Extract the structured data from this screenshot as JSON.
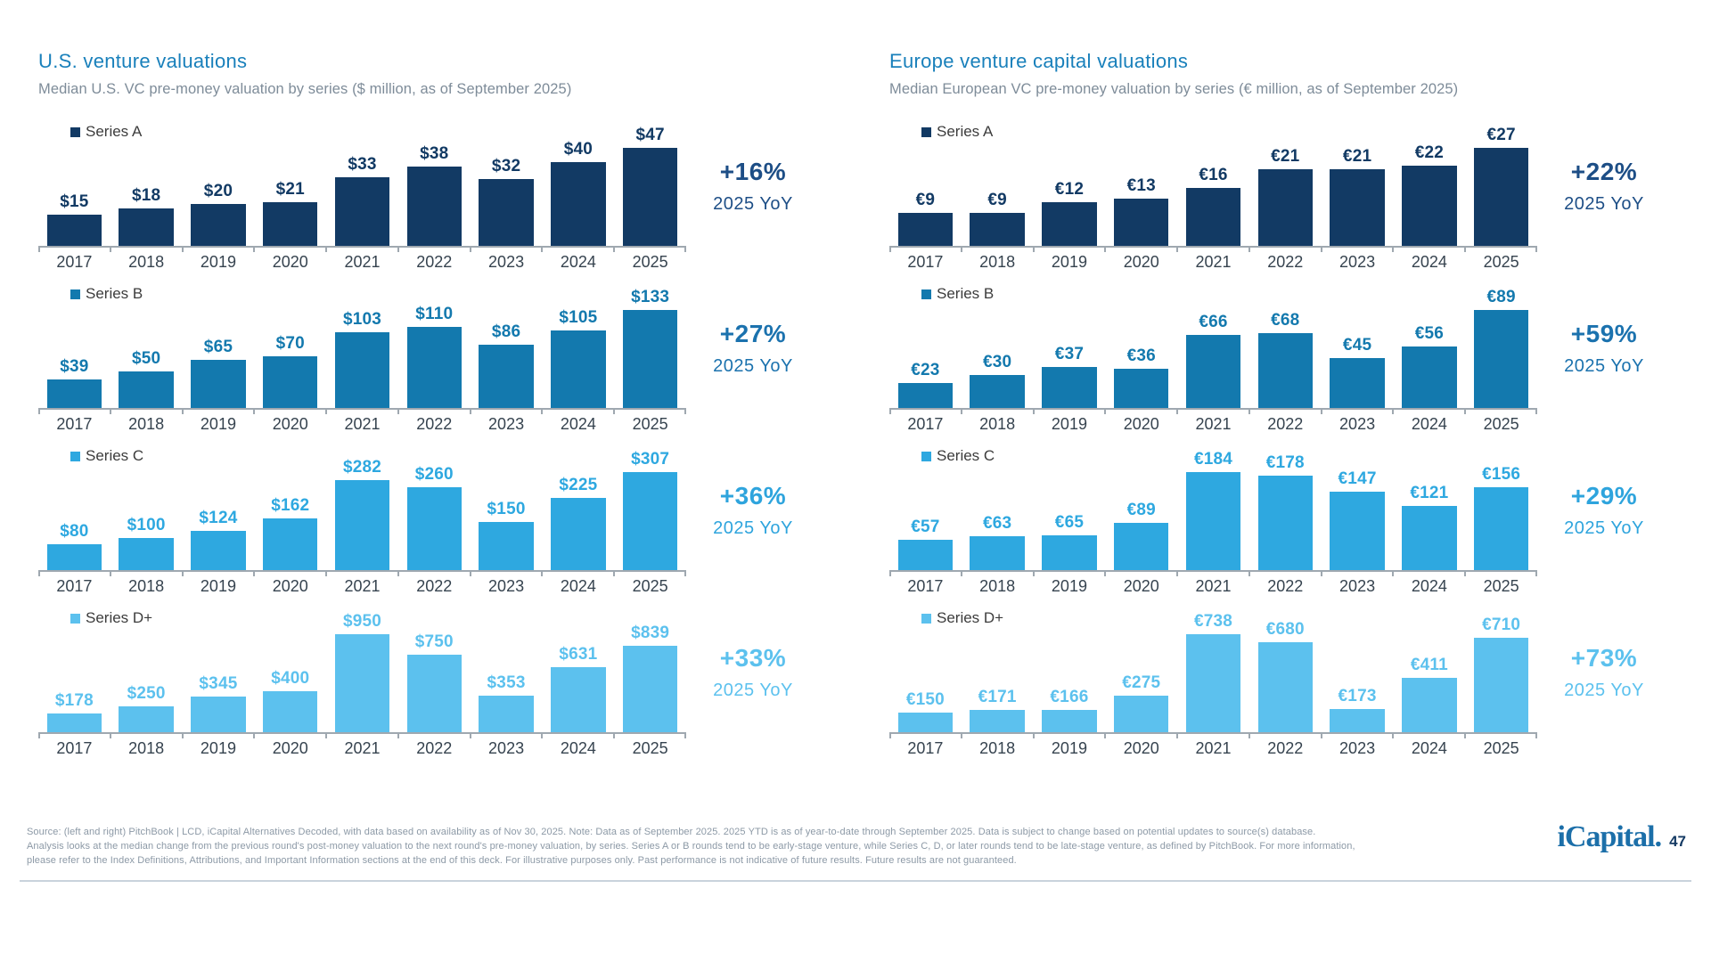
{
  "sections": {
    "left": {
      "title": "U.S. venture valuations",
      "subtitle": "Median U.S. VC pre-money valuation by series ($ million, as of September 2025)"
    },
    "right": {
      "title": "Europe venture capital valuations",
      "subtitle": "Median European VC pre-money valuation by series (€ million, as of September 2025)"
    }
  },
  "chart_data": [
    {
      "type": "bar",
      "side": "left",
      "series": "Series A",
      "currency": "$",
      "categories": [
        "2017",
        "2018",
        "2019",
        "2020",
        "2021",
        "2022",
        "2023",
        "2024",
        "2025"
      ],
      "values": [
        15,
        18,
        20,
        21,
        33,
        38,
        32,
        40,
        47
      ],
      "value_labels": [
        "$15",
        "$18",
        "$20",
        "$21",
        "$33",
        "$38",
        "$32",
        "$40",
        "$47"
      ],
      "bar_color": "#123A64",
      "label_color": "#123A64",
      "yoy": "+16%",
      "yoy_label": "2025 YoY",
      "yoy_color": "#1D4E86",
      "legend_position": "top-left",
      "grid": false
    },
    {
      "type": "bar",
      "side": "left",
      "series": "Series B",
      "currency": "$",
      "categories": [
        "2017",
        "2018",
        "2019",
        "2020",
        "2021",
        "2022",
        "2023",
        "2024",
        "2025"
      ],
      "values": [
        39,
        50,
        65,
        70,
        103,
        110,
        86,
        105,
        133
      ],
      "value_labels": [
        "$39",
        "$50",
        "$65",
        "$70",
        "$103",
        "$110",
        "$86",
        "$105",
        "$133"
      ],
      "bar_color": "#1379AE",
      "label_color": "#1379AE",
      "yoy": "+27%",
      "yoy_label": "2025 YoY",
      "yoy_color": "#1B72AE",
      "legend_position": "top-left",
      "grid": false
    },
    {
      "type": "bar",
      "side": "left",
      "series": "Series C",
      "currency": "$",
      "categories": [
        "2017",
        "2018",
        "2019",
        "2020",
        "2021",
        "2022",
        "2023",
        "2024",
        "2025"
      ],
      "values": [
        80,
        100,
        124,
        162,
        282,
        260,
        150,
        225,
        307
      ],
      "value_labels": [
        "$80",
        "$100",
        "$124",
        "$162",
        "$282",
        "$260",
        "$150",
        "$225",
        "$307"
      ],
      "bar_color": "#2EA8E0",
      "label_color": "#2EA8E0",
      "yoy": "+36%",
      "yoy_label": "2025 YoY",
      "yoy_color": "#2EA4DD",
      "legend_position": "top-left",
      "grid": false
    },
    {
      "type": "bar",
      "side": "left",
      "series": "Series D+",
      "currency": "$",
      "categories": [
        "2017",
        "2018",
        "2019",
        "2020",
        "2021",
        "2022",
        "2023",
        "2024",
        "2025"
      ],
      "values": [
        178,
        250,
        345,
        400,
        950,
        750,
        353,
        631,
        839
      ],
      "value_labels": [
        "$178",
        "$250",
        "$345",
        "$400",
        "$950",
        "$750",
        "$353",
        "$631",
        "$839"
      ],
      "bar_color": "#5CC1EE",
      "label_color": "#5CC1EE",
      "yoy": "+33%",
      "yoy_label": "2025 YoY",
      "yoy_color": "#5CC1EE",
      "legend_position": "top-left",
      "grid": false
    },
    {
      "type": "bar",
      "side": "right",
      "series": "Series A",
      "currency": "€",
      "categories": [
        "2017",
        "2018",
        "2019",
        "2020",
        "2021",
        "2022",
        "2023",
        "2024",
        "2025"
      ],
      "values": [
        9,
        9,
        12,
        13,
        16,
        21,
        21,
        22,
        27
      ],
      "value_labels": [
        "€9",
        "€9",
        "€12",
        "€13",
        "€16",
        "€21",
        "€21",
        "€22",
        "€27"
      ],
      "bar_color": "#123A64",
      "label_color": "#123A64",
      "yoy": "+22%",
      "yoy_label": "2025 YoY",
      "yoy_color": "#1D4E86",
      "legend_position": "top-left",
      "grid": false
    },
    {
      "type": "bar",
      "side": "right",
      "series": "Series B",
      "currency": "€",
      "categories": [
        "2017",
        "2018",
        "2019",
        "2020",
        "2021",
        "2022",
        "2023",
        "2024",
        "2025"
      ],
      "values": [
        23,
        30,
        37,
        36,
        66,
        68,
        45,
        56,
        89
      ],
      "value_labels": [
        "€23",
        "€30",
        "€37",
        "€36",
        "€66",
        "€68",
        "€45",
        "€56",
        "€89"
      ],
      "bar_color": "#1379AE",
      "label_color": "#1379AE",
      "yoy": "+59%",
      "yoy_label": "2025 YoY",
      "yoy_color": "#1B72AE",
      "legend_position": "top-left",
      "grid": false
    },
    {
      "type": "bar",
      "side": "right",
      "series": "Series C",
      "currency": "€",
      "categories": [
        "2017",
        "2018",
        "2019",
        "2020",
        "2021",
        "2022",
        "2023",
        "2024",
        "2025"
      ],
      "values": [
        57,
        63,
        65,
        89,
        184,
        178,
        147,
        121,
        156
      ],
      "value_labels": [
        "€57",
        "€63",
        "€65",
        "€89",
        "€184",
        "€178",
        "€147",
        "€121",
        "€156"
      ],
      "bar_color": "#2EA8E0",
      "label_color": "#2EA8E0",
      "yoy": "+29%",
      "yoy_label": "2025 YoY",
      "yoy_color": "#2EA4DD",
      "legend_position": "top-left",
      "grid": false
    },
    {
      "type": "bar",
      "side": "right",
      "series": "Series D+",
      "currency": "€",
      "categories": [
        "2017",
        "2018",
        "2019",
        "2020",
        "2021",
        "2022",
        "2023",
        "2024",
        "2025"
      ],
      "values": [
        150,
        171,
        166,
        275,
        738,
        680,
        173,
        411,
        710
      ],
      "value_labels": [
        "€150",
        "€171",
        "€166",
        "€275",
        "€738",
        "€680",
        "€173",
        "€411",
        "€710"
      ],
      "bar_color": "#5CC1EE",
      "label_color": "#5CC1EE",
      "yoy": "+73%",
      "yoy_label": "2025 YoY",
      "yoy_color": "#5CC1EE",
      "legend_position": "top-left",
      "grid": false
    }
  ],
  "footer": {
    "lines": [
      "Source: (left and right) PitchBook | LCD, iCapital Alternatives Decoded, with data based on availability as of Nov 30, 2025. Note: Data as of September 2025. 2025 YTD is as of year-to-date through September 2025. Data is subject to change based on potential updates to source(s) database.",
      "Analysis looks at the median change from the previous round's post-money valuation to the next round's pre-money valuation, by series. Series A or B rounds tend to be early-stage venture, while Series C, D, or later rounds tend to be late-stage venture, as defined by PitchBook. For more information,",
      "please refer to the Index Definitions, Attributions, and Important Information sections at the end of this deck. For illustrative purposes only. Past performance is not indicative of future results. Future results are not guaranteed."
    ],
    "logo": "iCapital.",
    "page_number": "47"
  }
}
